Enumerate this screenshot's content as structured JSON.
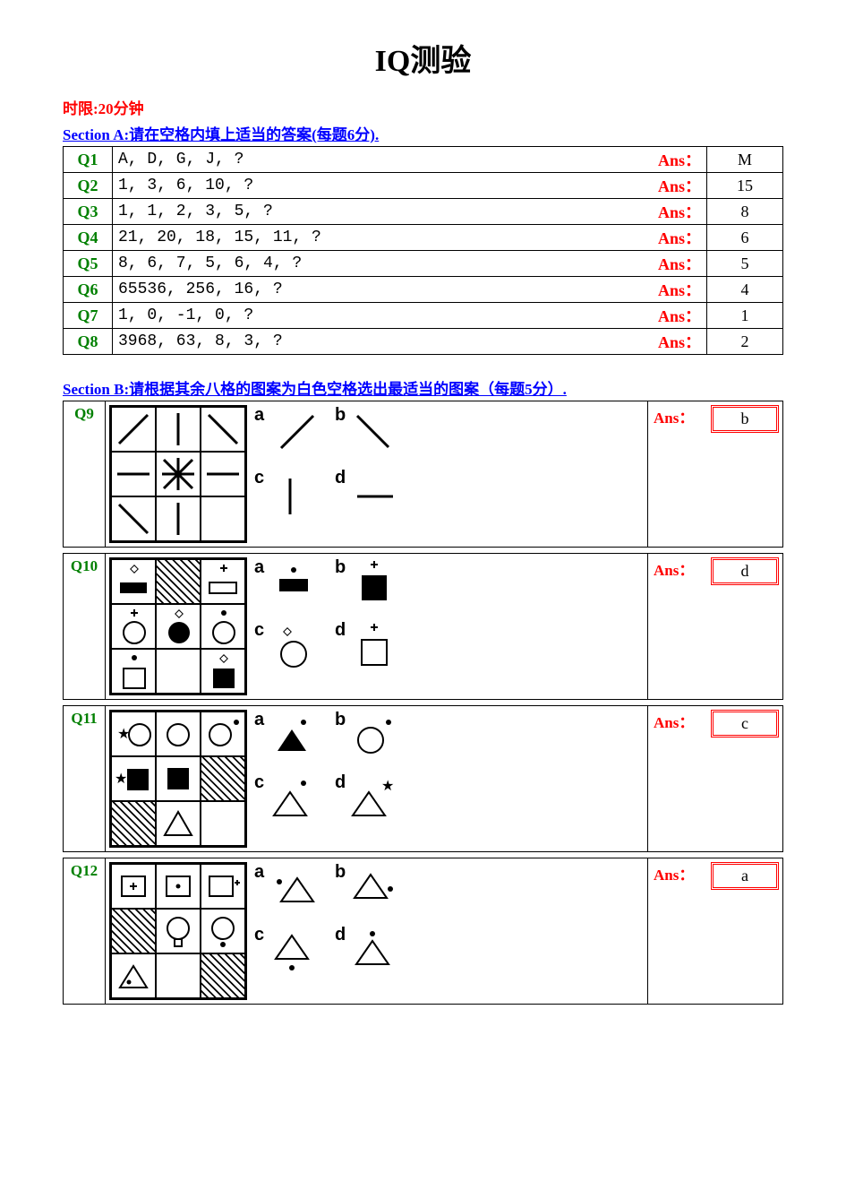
{
  "title": "IQ测验",
  "time_limit": "时限:20分钟",
  "sectionA": {
    "header": "Section A:请在空格内填上适当的答案(每题6分).",
    "ans_label": "Ans：",
    "rows": [
      {
        "qnum": "Q1",
        "text": "A,  D,  G,  J,  ?",
        "ans": "M"
      },
      {
        "qnum": "Q2",
        "text": "1,  3,  6,  10,  ?",
        "ans": "15"
      },
      {
        "qnum": "Q3",
        "text": "1,  1,  2,  3,  5,  ?",
        "ans": "8"
      },
      {
        "qnum": "Q4",
        "text": "21,  20,  18,  15,  11,  ?",
        "ans": "6"
      },
      {
        "qnum": "Q5",
        "text": "8,  6,  7,  5,  6,  4,  ?",
        "ans": "5"
      },
      {
        "qnum": "Q6",
        "text": "65536,  256,  16,  ?",
        "ans": "4"
      },
      {
        "qnum": "Q7",
        "text": "1,  0,  -1,  0,  ?",
        "ans": "1"
      },
      {
        "qnum": "Q8",
        "text": "3968,  63,  8,  3,  ?",
        "ans": "2"
      }
    ]
  },
  "sectionB": {
    "header": "Section B:请根据其余八格的图案为白色空格选出最适当的图案（每题5分）.",
    "ans_label": "Ans：",
    "option_labels": [
      "a",
      "b",
      "c",
      "d"
    ],
    "rows": [
      {
        "qnum": "Q9",
        "ans": "b"
      },
      {
        "qnum": "Q10",
        "ans": "d"
      },
      {
        "qnum": "Q11",
        "ans": "c"
      },
      {
        "qnum": "Q12",
        "ans": "a"
      }
    ]
  },
  "colors": {
    "title": "#000000",
    "red": "#ff0000",
    "blue": "#0000ff",
    "green": "#008000",
    "border": "#000000",
    "bg": "#ffffff"
  }
}
